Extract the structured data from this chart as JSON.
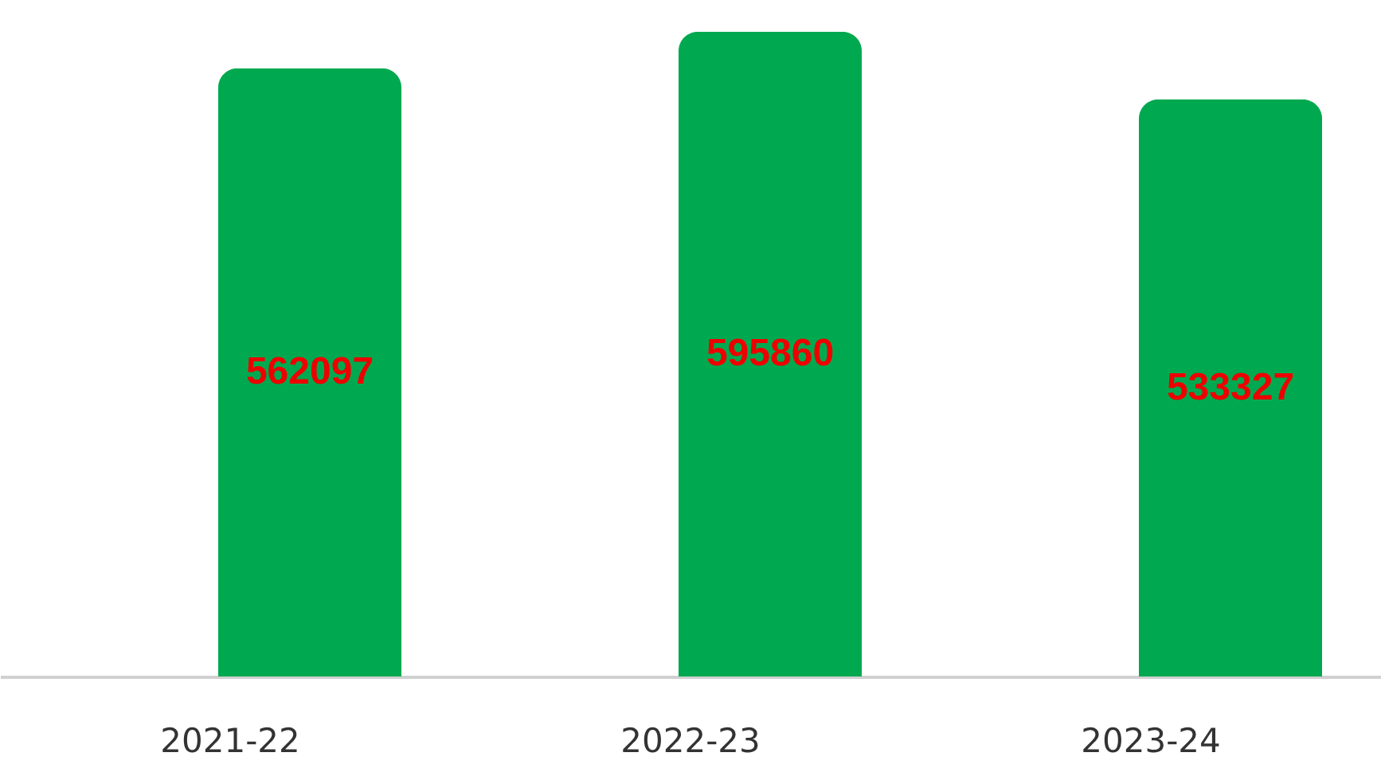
{
  "chart_data": {
    "type": "bar",
    "categories": [
      "2021-22",
      "2022-23",
      "2023-24"
    ],
    "values": [
      562097,
      595860,
      533327
    ],
    "color": "#00a94f",
    "data_labels": true,
    "tick_labels": "x",
    "grid": false
  }
}
